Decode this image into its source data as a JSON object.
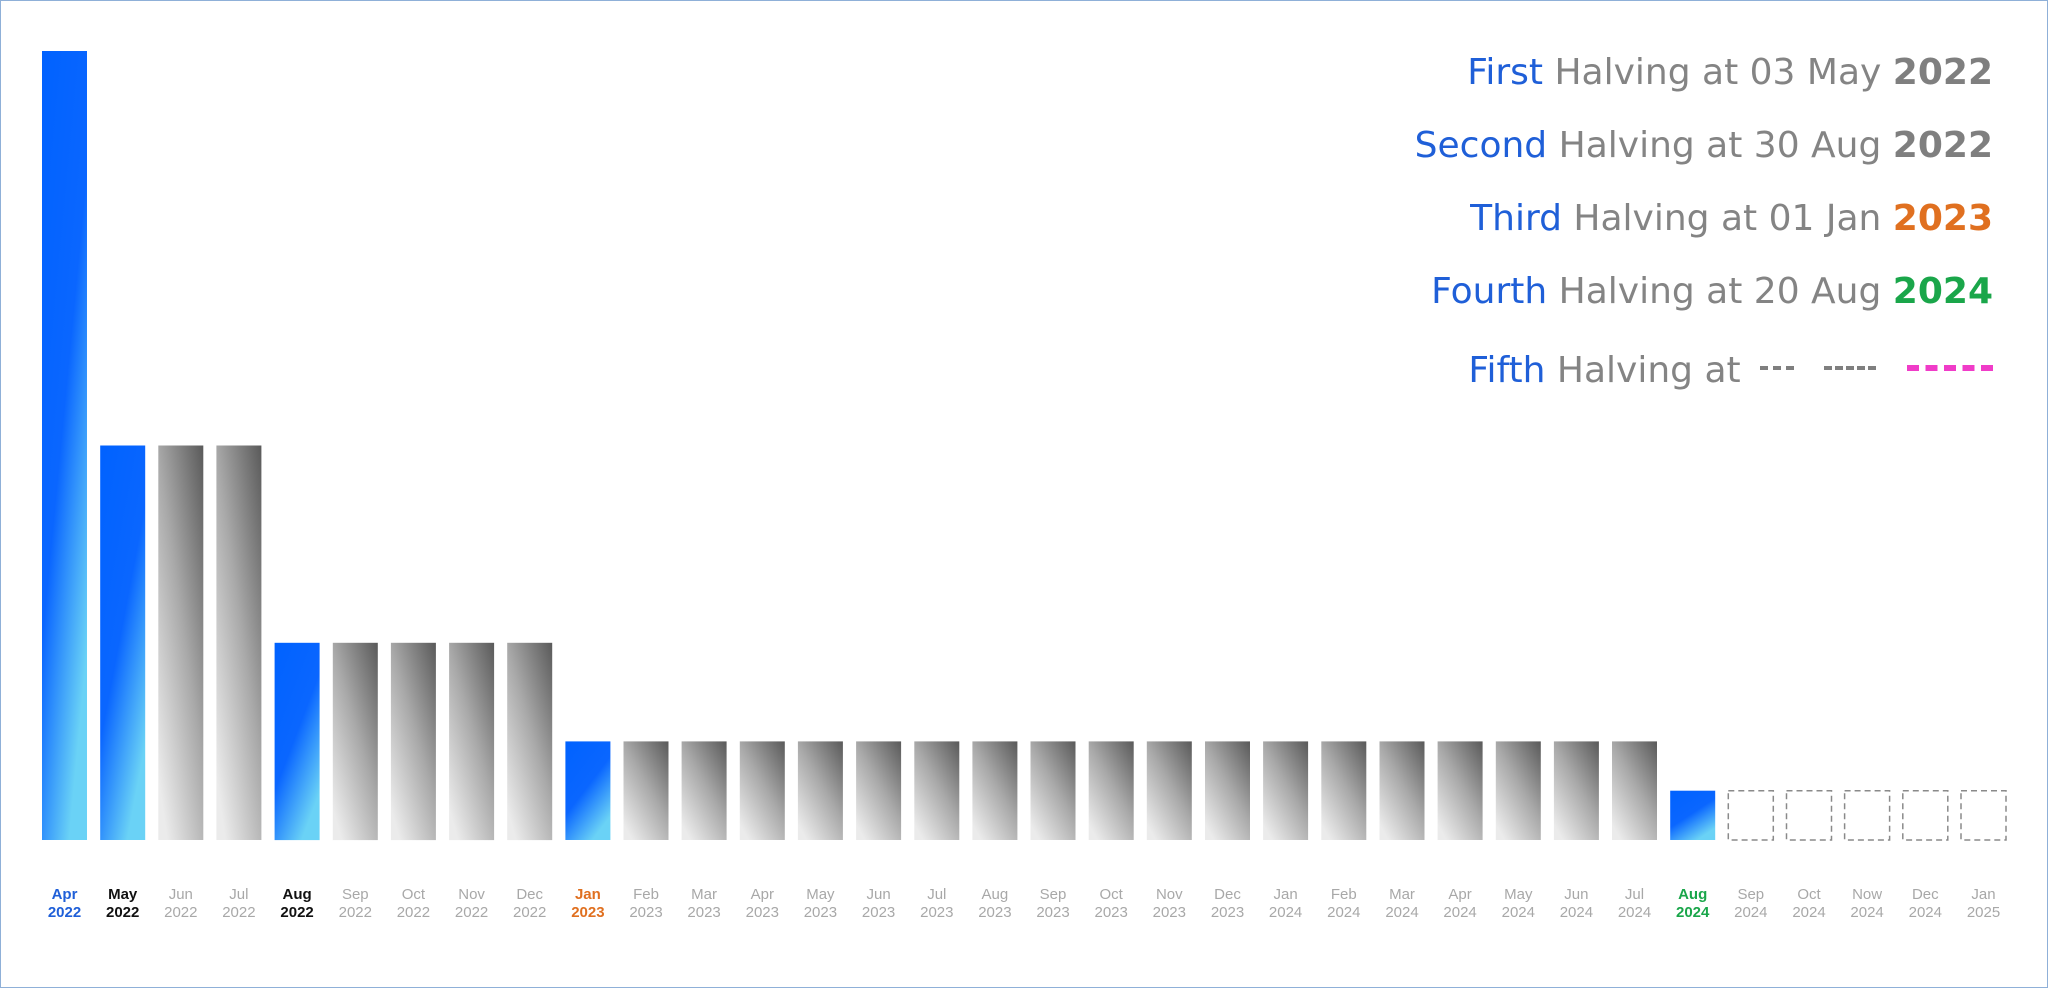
{
  "legend": [
    {
      "ordinal": "First",
      "mid": "Halving at 03 May",
      "year": "2022",
      "year_color": "#7f7f7f"
    },
    {
      "ordinal": "Second",
      "mid": "Halving at 30 Aug",
      "year": "2022",
      "year_color": "#7f7f7f"
    },
    {
      "ordinal": "Third",
      "mid": "Halving at 01 Jan",
      "year": "2023",
      "year_color": "#e07020"
    },
    {
      "ordinal": "Fourth",
      "mid": "Halving at 20 Aug",
      "year": "2024",
      "year_color": "#1aa64a"
    },
    {
      "ordinal": "Fifth",
      "mid": "Halving at",
      "year": "",
      "year_color": "#f03cc8"
    }
  ],
  "chart_data": {
    "type": "bar",
    "ylim": [
      0,
      16
    ],
    "categories": [
      {
        "month": "Apr",
        "year": "2022",
        "value": 16,
        "style": "blue",
        "label_color": "#1f5fd8"
      },
      {
        "month": "May",
        "year": "2022",
        "value": 8,
        "style": "blue",
        "label_color": "#111111"
      },
      {
        "month": "Jun",
        "year": "2022",
        "value": 8,
        "style": "grey",
        "label_color": "#a8a8a8"
      },
      {
        "month": "Jul",
        "year": "2022",
        "value": 8,
        "style": "grey",
        "label_color": "#a8a8a8"
      },
      {
        "month": "Aug",
        "year": "2022",
        "value": 4,
        "style": "blue",
        "label_color": "#111111"
      },
      {
        "month": "Sep",
        "year": "2022",
        "value": 4,
        "style": "grey",
        "label_color": "#a8a8a8"
      },
      {
        "month": "Oct",
        "year": "2022",
        "value": 4,
        "style": "grey",
        "label_color": "#a8a8a8"
      },
      {
        "month": "Nov",
        "year": "2022",
        "value": 4,
        "style": "grey",
        "label_color": "#a8a8a8"
      },
      {
        "month": "Dec",
        "year": "2022",
        "value": 4,
        "style": "grey",
        "label_color": "#a8a8a8"
      },
      {
        "month": "Jan",
        "year": "2023",
        "value": 2,
        "style": "blue",
        "label_color": "#e07020"
      },
      {
        "month": "Feb",
        "year": "2023",
        "value": 2,
        "style": "grey",
        "label_color": "#a8a8a8"
      },
      {
        "month": "Mar",
        "year": "2023",
        "value": 2,
        "style": "grey",
        "label_color": "#a8a8a8"
      },
      {
        "month": "Apr",
        "year": "2023",
        "value": 2,
        "style": "grey",
        "label_color": "#a8a8a8"
      },
      {
        "month": "May",
        "year": "2023",
        "value": 2,
        "style": "grey",
        "label_color": "#a8a8a8"
      },
      {
        "month": "Jun",
        "year": "2023",
        "value": 2,
        "style": "grey",
        "label_color": "#a8a8a8"
      },
      {
        "month": "Jul",
        "year": "2023",
        "value": 2,
        "style": "grey",
        "label_color": "#a8a8a8"
      },
      {
        "month": "Aug",
        "year": "2023",
        "value": 2,
        "style": "grey",
        "label_color": "#a8a8a8"
      },
      {
        "month": "Sep",
        "year": "2023",
        "value": 2,
        "style": "grey",
        "label_color": "#a8a8a8"
      },
      {
        "month": "Oct",
        "year": "2023",
        "value": 2,
        "style": "grey",
        "label_color": "#a8a8a8"
      },
      {
        "month": "Nov",
        "year": "2023",
        "value": 2,
        "style": "grey",
        "label_color": "#a8a8a8"
      },
      {
        "month": "Dec",
        "year": "2023",
        "value": 2,
        "style": "grey",
        "label_color": "#a8a8a8"
      },
      {
        "month": "Jan",
        "year": "2024",
        "value": 2,
        "style": "grey",
        "label_color": "#a8a8a8"
      },
      {
        "month": "Feb",
        "year": "2024",
        "value": 2,
        "style": "grey",
        "label_color": "#a8a8a8"
      },
      {
        "month": "Mar",
        "year": "2024",
        "value": 2,
        "style": "grey",
        "label_color": "#a8a8a8"
      },
      {
        "month": "Apr",
        "year": "2024",
        "value": 2,
        "style": "grey",
        "label_color": "#a8a8a8"
      },
      {
        "month": "May",
        "year": "2024",
        "value": 2,
        "style": "grey",
        "label_color": "#a8a8a8"
      },
      {
        "month": "Jun",
        "year": "2024",
        "value": 2,
        "style": "grey",
        "label_color": "#a8a8a8"
      },
      {
        "month": "Jul",
        "year": "2024",
        "value": 2,
        "style": "grey",
        "label_color": "#a8a8a8"
      },
      {
        "month": "Aug",
        "year": "2024",
        "value": 1,
        "style": "blue",
        "label_color": "#1aa64a"
      },
      {
        "month": "Sep",
        "year": "2024",
        "value": 1,
        "style": "dashed",
        "label_color": "#a8a8a8"
      },
      {
        "month": "Oct",
        "year": "2024",
        "value": 1,
        "style": "dashed",
        "label_color": "#a8a8a8"
      },
      {
        "month": "Now",
        "year": "2024",
        "value": 1,
        "style": "dashed",
        "label_color": "#a8a8a8"
      },
      {
        "month": "Dec",
        "year": "2024",
        "value": 1,
        "style": "dashed",
        "label_color": "#a8a8a8"
      },
      {
        "month": "Jan",
        "year": "2025",
        "value": 1,
        "style": "dashed",
        "label_color": "#a8a8a8"
      }
    ]
  }
}
